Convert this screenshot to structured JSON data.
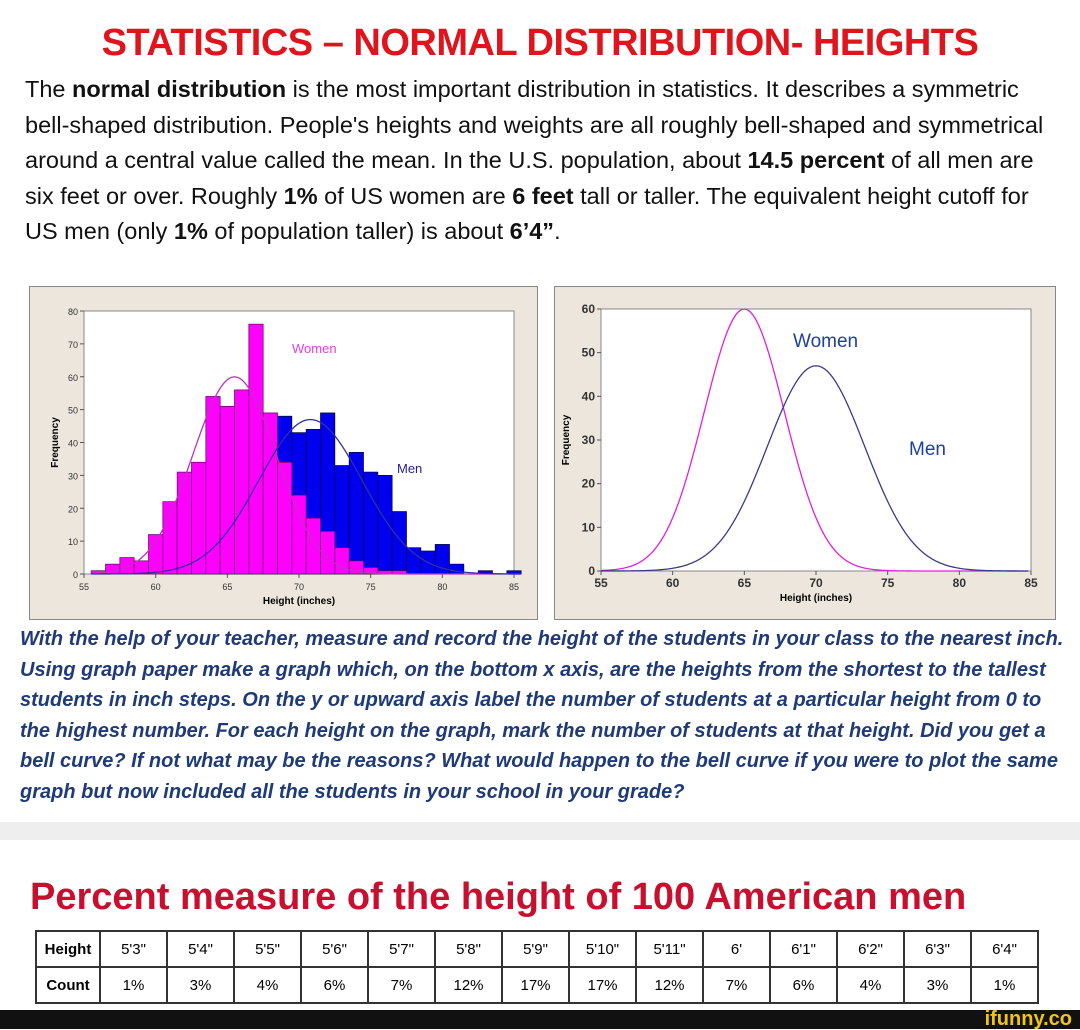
{
  "title": "STATISTICS – NORMAL DISTRIBUTION- HEIGHTS",
  "intro": [
    {
      "t": "The ",
      "b": false
    },
    {
      "t": "normal distribution",
      "b": true
    },
    {
      "t": " is the most important distribution in statistics. It describes a symmetric bell-shaped distribution. People's heights and weights are all roughly bell-shaped and symmetrical around a central value called the mean.  In the U.S. population, about ",
      "b": false
    },
    {
      "t": "14.5 percent",
      "b": true
    },
    {
      "t": " of all men are six feet or over.  Roughly ",
      "b": false
    },
    {
      "t": "1%",
      "b": true
    },
    {
      "t": " of US women are ",
      "b": false
    },
    {
      "t": "6 feet",
      "b": true
    },
    {
      "t": " tall or taller. The equivalent height cutoff for US men (only ",
      "b": false
    },
    {
      "t": "1%",
      "b": true
    },
    {
      "t": " of population taller) is about ",
      "b": false
    },
    {
      "t": "6’4”",
      "b": true
    },
    {
      "t": ".",
      "b": false
    }
  ],
  "question": "With the help of your teacher, measure and record the height of the students in your class to the nearest inch.  Using graph paper make a graph which, on the bottom x axis, are the heights from the shortest to the tallest students in inch steps. On the y or upward axis label the number of students at a particular height from 0 to the highest number.  For each height on the graph, mark the number of students at that height.  Did you get a bell curve?  If not what may be the reasons?  What would happen to the bell curve if you were to plot the same graph but now included all the students in your school in your grade?",
  "chart_data": [
    {
      "type": "bar",
      "title": "",
      "xlabel": "Height (inches)",
      "ylabel": "Frequency",
      "xlim": [
        55,
        85
      ],
      "ylim": [
        0,
        80
      ],
      "xticks": [
        55,
        60,
        65,
        70,
        75,
        80,
        85
      ],
      "yticks": [
        0,
        10,
        20,
        30,
        40,
        50,
        60,
        70,
        80
      ],
      "labels": {
        "women": "Women",
        "men": "Men"
      },
      "x": [
        55,
        56,
        57,
        58,
        59,
        60,
        61,
        62,
        63,
        64,
        65,
        66,
        67,
        68,
        69,
        70,
        71,
        72,
        73,
        74,
        75,
        76,
        77,
        78,
        79,
        80,
        81,
        82,
        83,
        84
      ],
      "series": [
        {
          "name": "Women",
          "color": "#ff00ff",
          "values": [
            1,
            3,
            5,
            4,
            12,
            22,
            31,
            34,
            54,
            51,
            56,
            76,
            49,
            34,
            24,
            17,
            13,
            8,
            4,
            2,
            1,
            1,
            0,
            0,
            0,
            0,
            0,
            0,
            0,
            0
          ]
        },
        {
          "name": "Men",
          "color": "#0000ee",
          "values": [
            0,
            0,
            0,
            0,
            0,
            1,
            2,
            3,
            4,
            6,
            9,
            13,
            20,
            48,
            43,
            44,
            49,
            33,
            37,
            31,
            30,
            19,
            8,
            7,
            9,
            3,
            0,
            1,
            0,
            1
          ]
        }
      ]
    },
    {
      "type": "line",
      "xlabel": "Height (inches)",
      "ylabel": "Frequency",
      "xlim": [
        55,
        85
      ],
      "ylim": [
        0,
        60
      ],
      "xticks": [
        55,
        60,
        65,
        70,
        75,
        80,
        85
      ],
      "yticks": [
        0,
        10,
        20,
        30,
        40,
        50,
        60
      ],
      "labels": {
        "women": "Women",
        "men": "Men"
      },
      "series": [
        {
          "name": "Women",
          "color": "#e020e0",
          "mean": 65,
          "peak": 60,
          "sd": 2.8
        },
        {
          "name": "Men",
          "color": "#3a3a8a",
          "mean": 70,
          "peak": 47,
          "sd": 3.4
        }
      ]
    }
  ],
  "table": {
    "title": "Percent measure of the height of 100 American men",
    "row1_label": "Height",
    "heights": [
      "5'3\"",
      "5'4\"",
      "5'5\"",
      "5'6\"",
      "5'7\"",
      "5'8\"",
      "5'9\"",
      "5'10\"",
      "5'11\"",
      "6'",
      "6'1\"",
      "6'2\"",
      "6'3\"",
      "6'4\""
    ],
    "row2_label": "Count",
    "counts": [
      "1%",
      "3%",
      "4%",
      "6%",
      "7%",
      "12%",
      "17%",
      "17%",
      "12%",
      "7%",
      "6%",
      "4%",
      "3%",
      "1%"
    ]
  },
  "watermark": "ifunny.co"
}
